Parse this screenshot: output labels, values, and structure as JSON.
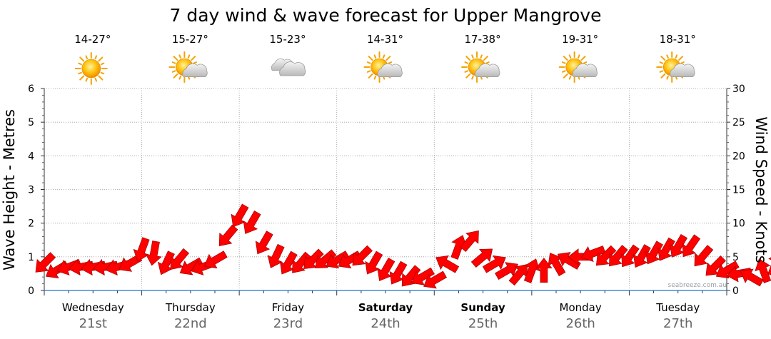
{
  "chart_data": {
    "type": "area",
    "title": "7 day wind & wave forecast for Upper Mangrove",
    "ylabel": "Wave Height - Metres",
    "y2label": "Wind Speed - Knots",
    "ylim": [
      0,
      6
    ],
    "y2lim": [
      0,
      30
    ],
    "yticks": [
      "0",
      "1",
      "2",
      "3",
      "4",
      "5",
      "6"
    ],
    "y2ticks": [
      "0",
      "5",
      "10",
      "15",
      "20",
      "25",
      "30"
    ],
    "grid": true,
    "days": [
      {
        "name": "Wednesday",
        "date": "21st",
        "bold": false,
        "temp": "14-27°",
        "icon": "sunny"
      },
      {
        "name": "Thursday",
        "date": "22nd",
        "bold": false,
        "temp": "15-27°",
        "icon": "partly-cloudy"
      },
      {
        "name": "Friday",
        "date": "23rd",
        "bold": false,
        "temp": "15-23°",
        "icon": "cloudy"
      },
      {
        "name": "Saturday",
        "date": "24th",
        "bold": true,
        "temp": "14-31°",
        "icon": "partly-cloudy"
      },
      {
        "name": "Sunday",
        "date": "25th",
        "bold": true,
        "temp": "17-38°",
        "icon": "partly-cloudy"
      },
      {
        "name": "Monday",
        "date": "26th",
        "bold": false,
        "temp": "19-31°",
        "icon": "partly-cloudy"
      },
      {
        "name": "Tuesday",
        "date": "27th",
        "bold": false,
        "temp": "18-31°",
        "icon": "partly-cloudy"
      }
    ],
    "wave_series": {
      "name": "Wave Height",
      "values": [
        0,
        0,
        0,
        0,
        0,
        0,
        0,
        0,
        0,
        0,
        0,
        0,
        0,
        0,
        0
      ]
    },
    "wind_series": {
      "name": "Wind Speed",
      "hours_step": 3,
      "speed_knots": [
        4,
        3,
        3.5,
        3.5,
        3.5,
        3.5,
        3.5,
        4,
        6,
        5.5,
        4,
        4.5,
        3.5,
        3.5,
        4.5,
        8,
        11,
        10,
        7,
        5,
        4,
        4,
        4.5,
        4.5,
        4.5,
        4.5,
        5,
        4,
        3,
        2.5,
        2,
        2,
        1.5,
        4,
        6.5,
        7.5,
        5,
        4,
        3,
        2.5,
        3,
        3,
        4,
        4.5,
        5,
        5.5,
        5,
        5,
        5,
        5,
        5.5,
        6,
        6.5,
        6.5,
        5,
        3.5,
        3,
        2.5,
        2,
        3,
        4,
        5.5,
        5,
        4,
        3.5
      ],
      "direction_deg": [
        45,
        60,
        70,
        80,
        80,
        80,
        75,
        60,
        20,
        10,
        25,
        40,
        60,
        70,
        60,
        40,
        30,
        30,
        30,
        25,
        30,
        40,
        45,
        50,
        60,
        60,
        45,
        30,
        30,
        30,
        40,
        60,
        60,
        120,
        200,
        220,
        230,
        240,
        240,
        220,
        200,
        180,
        150,
        120,
        90,
        70,
        45,
        40,
        35,
        30,
        30,
        30,
        30,
        35,
        40,
        45,
        60,
        80,
        120,
        160,
        200,
        220,
        230,
        240,
        250
      ]
    },
    "colors": {
      "arrow": "#ff0000",
      "arrow_stroke": "#a00000",
      "wave": "#1f78c8",
      "grid": "#999999"
    },
    "watermark": "seabreeze.com.au"
  }
}
